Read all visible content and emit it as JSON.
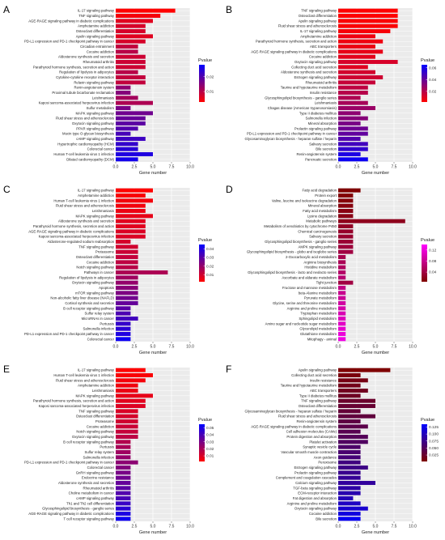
{
  "chart_data": [
    {
      "panel": "A",
      "type": "bar",
      "orientation": "horizontal",
      "xlabel": "Gene number",
      "xlim": [
        0,
        10
      ],
      "xticks": [
        "0.0",
        "2.5",
        "5.0",
        "7.5",
        "10.0"
      ],
      "legend_title": "Pvalue",
      "legend_ticks": [
        "0.02",
        "0.01"
      ],
      "color_range": [
        0.003,
        0.028
      ],
      "colors": [
        "#ff0000",
        "#0000ff"
      ],
      "categories": [
        "IL-17 signaling pathway",
        "TNF signaling pathway",
        "AGE-RAGE signaling pathway in diabetic complications",
        "Amphetamine addiction",
        "Osteoclast differentiation",
        "Apelin signaling pathway",
        "PD-L1 expression and PD-1 checkpoint pathway in cancer",
        "Circadian entrainment",
        "Cocaine addiction",
        "Aldosterone synthesis and secretion",
        "Rheumatoid arthritis",
        "Parathyroid hormone synthesis, secretion and action",
        "Regulation of lipolysis in adipocytes",
        "Cytokine-cytokine receptor interaction",
        "Relaxin signaling pathway",
        "Renin-angiotensin system",
        "Proximal tubule bicarbonate reclamation",
        "Leishmaniasis",
        "Kaposi sarcoma-associated herpesvirus infection",
        "Sulfur metabolism",
        "MAPK signaling pathway",
        "Fluid shear stress and atherosclerosis",
        "Oxytocin signaling pathway",
        "PPAR signaling pathway",
        "Mucin type O-glycan biosynthesis",
        "cAMP signaling pathway",
        "Hypertrophic cardiomyopathy (HCM)",
        "Colorectal cancer",
        "Human T-cell leukemia virus 1 infection",
        "Dilated cardiomyopathy (DCM)"
      ],
      "values": [
        8,
        6,
        5,
        4,
        4,
        5,
        4,
        3,
        3,
        4,
        4,
        4,
        3,
        4,
        4,
        2,
        2,
        3,
        5,
        2,
        5,
        4,
        4,
        3,
        2,
        4,
        3,
        3,
        5,
        3
      ],
      "pvalues": [
        0.003,
        0.004,
        0.006,
        0.007,
        0.007,
        0.006,
        0.007,
        0.009,
        0.01,
        0.008,
        0.008,
        0.008,
        0.01,
        0.009,
        0.009,
        0.014,
        0.015,
        0.012,
        0.011,
        0.016,
        0.017,
        0.018,
        0.019,
        0.02,
        0.021,
        0.022,
        0.023,
        0.024,
        0.025,
        0.026
      ]
    },
    {
      "panel": "B",
      "type": "bar",
      "orientation": "horizontal",
      "xlabel": "Gene number",
      "xlim": [
        0,
        10
      ],
      "xticks": [
        "0.0",
        "2.5",
        "5.0",
        "7.5",
        "10.0"
      ],
      "legend_title": "Pvalue",
      "legend_ticks": [
        "0.06",
        "0.04",
        "0.02"
      ],
      "color_range": [
        0.002,
        0.065
      ],
      "colors": [
        "#ff0000",
        "#0000ff"
      ],
      "categories": [
        "TNF signaling pathway",
        "Osteoclast differentiation",
        "Apelin signaling pathway",
        "Fluid shear stress and atherosclerosis",
        "IL-17 signaling pathway",
        "Amphetamine addiction",
        "Parathyroid hormone synthesis, secretion and action",
        "ABC transporters",
        "AGE-RAGE signaling pathway in diabetic complications",
        "Cocaine addiction",
        "Oxytocin signaling pathway",
        "Collecting duct acid secretion",
        "Aldosterone synthesis and secretion",
        "Estrogen signaling pathway",
        "Rheumatoid arthritis",
        "Taurine and hypotaurine metabolism",
        "Insulin resistance",
        "Glycosphingolipid biosynthesis - ganglio series",
        "Leishmaniasis",
        "Chagas disease (American trypanosomiasis)",
        "Type II diabetes mellitus",
        "Salmonella infection",
        "Mineral absorption",
        "Prolactin signaling pathway",
        "PD-L1 expression and PD-1 checkpoint pathway in cancer",
        "Glycosaminoglycan biosynthesis - heparan sulfate / heparin",
        "Salivary secretion",
        "Bile secretion",
        "Renin-angiotensin system",
        "Pancreatic secretion"
      ],
      "values": [
        8,
        8,
        8,
        8,
        7,
        5,
        6,
        5,
        6,
        5,
        8,
        4,
        5,
        6,
        5,
        4,
        4,
        3,
        4,
        5,
        3,
        4,
        3,
        4,
        4,
        3,
        4,
        4,
        3,
        4
      ],
      "pvalues": [
        0.002,
        0.002,
        0.003,
        0.003,
        0.004,
        0.006,
        0.006,
        0.007,
        0.008,
        0.009,
        0.012,
        0.01,
        0.013,
        0.014,
        0.016,
        0.018,
        0.02,
        0.022,
        0.024,
        0.027,
        0.03,
        0.032,
        0.035,
        0.038,
        0.041,
        0.045,
        0.049,
        0.053,
        0.058,
        0.062
      ]
    },
    {
      "panel": "C",
      "type": "bar",
      "orientation": "horizontal",
      "xlabel": "Gene number",
      "xlim": [
        0,
        10
      ],
      "xticks": [
        "0.0",
        "2.5",
        "5.0",
        "7.5",
        "10.0"
      ],
      "legend_title": "Pvalue",
      "legend_ticks": [
        "0.04",
        "0.03",
        "0.02",
        "0.01"
      ],
      "color_range": [
        0.002,
        0.045
      ],
      "colors": [
        "#ff0000",
        "#0000ff"
      ],
      "categories": [
        "IL-17 signaling pathway",
        "Amphetamine addiction",
        "Human T-cell leukemia virus 1 infection",
        "Fluid shear stress and atherosclerosis",
        "Leishmaniasis",
        "MAPK signaling pathway",
        "Aldosterone synthesis and secretion",
        "Parathyroid hormone synthesis, secretion and action",
        "AGE-RAGE signaling pathway in diabetic complications",
        "Kaposi sarcoma-associated herpesvirus infection",
        "Aldosterone-regulated sodium reabsorption",
        "TNF signaling pathway",
        "Proteasome",
        "Osteoclast differentiation",
        "Cocaine addiction",
        "Notch signaling pathway",
        "Pathways in cancer",
        "Regulation of lipolysis in adipocytes",
        "Oxytocin signaling pathway",
        "Apoptosis",
        "mTOR signaling pathway",
        "Non-alcoholic fatty liver disease (NAFLD)",
        "Cortisol synthesis and secretion",
        "B cell receptor signaling pathway",
        "Sulfur relay system",
        "MicroRNAs in cancer",
        "Pertussis",
        "Salmonella infection",
        "PD-L1 expression and PD-1 checkpoint pathway in cancer",
        "Colorectal cancer"
      ],
      "values": [
        5,
        4,
        5,
        4,
        4,
        5,
        4,
        4,
        4,
        4,
        2,
        3,
        3,
        3,
        3,
        3,
        7,
        3,
        3,
        3,
        3,
        3,
        3,
        2,
        2,
        3,
        2,
        2,
        2,
        2
      ],
      "pvalues": [
        0.002,
        0.003,
        0.004,
        0.004,
        0.005,
        0.006,
        0.007,
        0.007,
        0.008,
        0.008,
        0.009,
        0.01,
        0.011,
        0.012,
        0.013,
        0.014,
        0.016,
        0.018,
        0.02,
        0.022,
        0.024,
        0.026,
        0.028,
        0.03,
        0.032,
        0.034,
        0.036,
        0.038,
        0.04,
        0.043
      ]
    },
    {
      "panel": "D",
      "type": "bar",
      "orientation": "horizontal",
      "xlabel": "Gene number",
      "xlim": [
        0,
        10
      ],
      "xticks": [
        "0.0",
        "2.5",
        "5.0",
        "7.5",
        "10.0"
      ],
      "legend_title": "Pvalue",
      "legend_ticks": [
        "0.12",
        "0.08",
        "0.04"
      ],
      "color_range": [
        0.005,
        0.14
      ],
      "colors": [
        "#800000",
        "#ff00ff"
      ],
      "categories": [
        "Fatty acid degradation",
        "Protein export",
        "Valine, leucine and isoleucine degradation",
        "Mineral absorption",
        "Fatty acid metabolism",
        "Lysine degradation",
        "Metabolic pathways",
        "Metabolism of xenobiotics by cytochrome P450",
        "Chemical carcinogenesis",
        "Salivary secretion",
        "Glycosphingolipid biosynthesis - ganglio series",
        "AMPK signaling pathway",
        "Glycosphingolipid biosynthesis - globo and isoglobo series",
        "2-Oxocarboxylic acid metabolism",
        "Arginine biosynthesis",
        "Histidine metabolism",
        "Glycosphingolipid biosynthesis - lacto and neolacto series",
        "Ascorbate and aldarate metabolism",
        "Tight junction",
        "Fructose and mannose metabolism",
        "beta-Alanine metabolism",
        "Pyruvate metabolism",
        "Glycine, serine and threonine metabolism",
        "Arginine and proline metabolism",
        "Tryptophan metabolism",
        "Sphingolipid metabolism",
        "Amino sugar and nucleotide sugar metabolism",
        "Glycerolipid metabolism",
        "Glutathione metabolism",
        "Mitophagy - animal"
      ],
      "values": [
        3,
        2,
        2,
        2,
        2,
        2,
        9,
        2,
        2,
        2,
        2,
        2,
        2,
        1,
        1,
        1,
        1,
        1,
        2,
        1,
        1,
        1,
        1,
        1,
        1,
        1,
        1,
        1,
        1,
        1
      ],
      "pvalues": [
        0.005,
        0.008,
        0.01,
        0.012,
        0.014,
        0.016,
        0.02,
        0.025,
        0.028,
        0.03,
        0.033,
        0.036,
        0.04,
        0.045,
        0.05,
        0.055,
        0.06,
        0.065,
        0.04,
        0.075,
        0.08,
        0.085,
        0.09,
        0.095,
        0.1,
        0.105,
        0.11,
        0.115,
        0.12,
        0.125
      ]
    },
    {
      "panel": "E",
      "type": "bar",
      "orientation": "horizontal",
      "xlabel": "Gene number",
      "xlim": [
        0,
        10
      ],
      "xticks": [
        "0.0",
        "2.5",
        "5.0",
        "7.5",
        "10.0"
      ],
      "legend_title": "Pvalue",
      "legend_ticks": [
        "0.05",
        "0.04",
        "0.03",
        "0.02",
        "0.01"
      ],
      "color_range": [
        0.002,
        0.055
      ],
      "colors": [
        "#ff0000",
        "#0000ff"
      ],
      "categories": [
        "IL-17 signaling pathway",
        "Human T-cell leukemia virus 1 infection",
        "Fluid shear stress and atherosclerosis",
        "Amphetamine addiction",
        "Leishmaniasis",
        "MAPK signaling pathway",
        "Parathyroid hormone synthesis, secretion and action",
        "Kaposi sarcoma-associated herpesvirus infection",
        "TNF signaling pathway",
        "Osteoclast differentiation",
        "Proteasome",
        "Cocaine addiction",
        "Notch signaling pathway",
        "Oxytocin signaling pathway",
        "B cell receptor signaling pathway",
        "Pertussis",
        "Sulfur relay system",
        "Salmonella infection",
        "PD-L1 expression and PD-1 checkpoint pathway in cancer",
        "Colorectal cancer",
        "GnRH signaling pathway",
        "Endocrine resistance",
        "Aldosterone synthesis and secretion",
        "Rheumatoid arthritis",
        "Choline metabolism in cancer",
        "cAMP signaling pathway",
        "Th1 and Th2 cell differentiation",
        "Glycosphingolipid biosynthesis - ganglio series",
        "AGE-RAGE signaling pathway in diabetic complications",
        "T cell receptor signaling pathway"
      ],
      "values": [
        4,
        5,
        4,
        3,
        3,
        5,
        4,
        4,
        3,
        3,
        3,
        3,
        3,
        3,
        2,
        2,
        2,
        2,
        3,
        2,
        2,
        2,
        2,
        2,
        2,
        2,
        2,
        2,
        2,
        2
      ],
      "pvalues": [
        0.002,
        0.003,
        0.004,
        0.005,
        0.006,
        0.007,
        0.008,
        0.009,
        0.01,
        0.011,
        0.012,
        0.013,
        0.014,
        0.016,
        0.018,
        0.02,
        0.022,
        0.024,
        0.026,
        0.028,
        0.03,
        0.032,
        0.034,
        0.036,
        0.038,
        0.04,
        0.043,
        0.046,
        0.049,
        0.052
      ]
    },
    {
      "panel": "F",
      "type": "bar",
      "orientation": "horizontal",
      "xlabel": "Gene number",
      "xlim": [
        0,
        10
      ],
      "xticks": [
        "0.0",
        "2.5",
        "5.0",
        "7.5",
        "10.0"
      ],
      "legend_title": "Pvalue",
      "legend_ticks": [
        "0.125",
        "0.100",
        "0.075",
        "0.050",
        "0.025"
      ],
      "color_range": [
        0.002,
        0.135
      ],
      "colors": [
        "#800000",
        "#0000ff"
      ],
      "categories": [
        "Apelin signaling pathway",
        "Collecting duct acid secretion",
        "Insulin resistance",
        "Taurine and hypotaurine metabolism",
        "ABC transporters",
        "Type II diabetes mellitus",
        "TNF signaling pathway",
        "Osteoclast differentiation",
        "Glycosaminoglycan biosynthesis - heparan sulfate / heparin",
        "Fluid shear stress and atherosclerosis",
        "Renin-angiotensin system",
        "AGE-RAGE signaling pathway in diabetic complications",
        "Cell adhesion molecules (CAMs)",
        "Protein digestion and absorption",
        "Platelet activation",
        "Synaptic vesicle cycle",
        "Vascular smooth muscle contraction",
        "Axon guidance",
        "Peroxisome",
        "Estrogen signaling pathway",
        "Prolactin signaling pathway",
        "Complement and coagulation cascades",
        "Calcium signaling pathway",
        "TGF-beta signaling pathway",
        "ECM-receptor interaction",
        "Fat digestion and absorption",
        "Arginine and proline metabolism",
        "Oxytocin signaling pathway",
        "Cocaine addiction",
        "Bile secretion"
      ],
      "values": [
        7,
        3,
        4,
        3,
        4,
        3,
        5,
        5,
        3,
        5,
        3,
        4,
        3,
        4,
        4,
        3,
        3,
        3,
        3,
        4,
        3,
        3,
        5,
        3,
        3,
        2,
        3,
        4,
        3,
        3
      ],
      "pvalues": [
        0.003,
        0.008,
        0.012,
        0.015,
        0.018,
        0.021,
        0.025,
        0.028,
        0.031,
        0.034,
        0.037,
        0.04,
        0.044,
        0.048,
        0.052,
        0.056,
        0.06,
        0.064,
        0.068,
        0.072,
        0.076,
        0.08,
        0.084,
        0.088,
        0.093,
        0.098,
        0.103,
        0.11,
        0.118,
        0.128
      ]
    }
  ]
}
